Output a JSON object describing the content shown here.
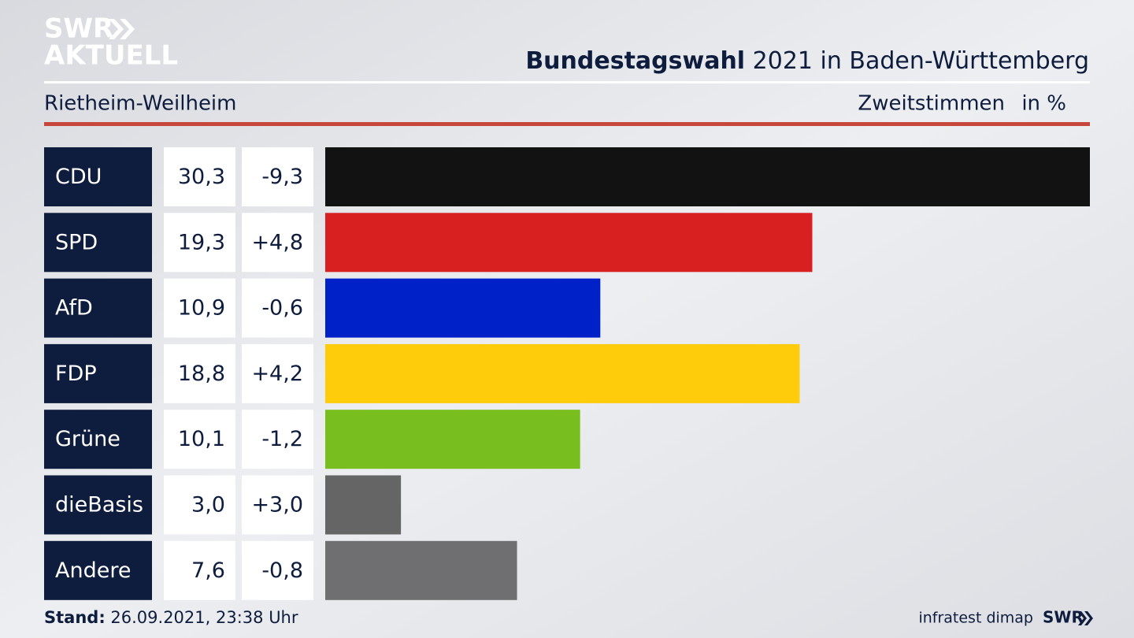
{
  "logo": [
    "SWR",
    "AKTUELL"
  ],
  "chart_data": {
    "type": "bar",
    "title": {
      "bold": "Bundestagswahl",
      "regular": "2021 in Baden-Württemberg"
    },
    "subtitle": "Rietheim-Weilheim",
    "measure": "Zweitstimmen",
    "unit": "in %",
    "categories": [
      "CDU",
      "SPD",
      "AfD",
      "FDP",
      "Grüne",
      "dieBasis",
      "Andere"
    ],
    "values": [
      30.3,
      19.3,
      10.9,
      18.8,
      10.1,
      3.0,
      7.6
    ],
    "value_labels": [
      "30,3",
      "19,3",
      "10,9",
      "18,8",
      "10,1",
      "3,0",
      "7,6"
    ],
    "changes": [
      -9.3,
      4.8,
      -0.6,
      4.2,
      -1.2,
      3.0,
      -0.8
    ],
    "change_labels": [
      "-9,3",
      "+4,8",
      "-0,6",
      "+4,2",
      "-1,2",
      "+3,0",
      "-0,8"
    ],
    "colors": [
      "#121212",
      "#d82020",
      "#0020c8",
      "#ffcc0c",
      "#78be1e",
      "#656565",
      "#6f6f71"
    ],
    "xlim": [
      0,
      30.3
    ],
    "footer": {
      "label": "Stand:",
      "date": "26.09.2021, 23:38 Uhr",
      "source": "infratest dimap",
      "brand": "SWR"
    }
  }
}
